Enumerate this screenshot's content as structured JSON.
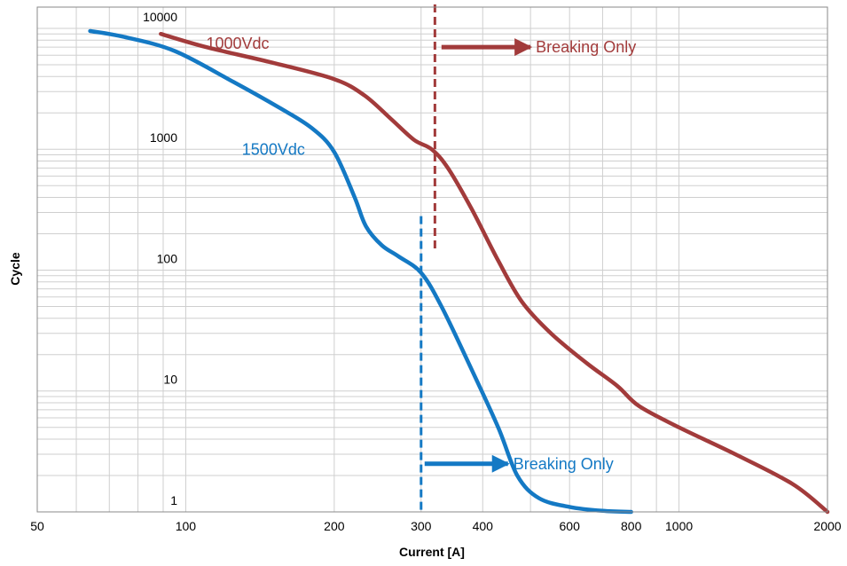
{
  "chart_data": {
    "type": "line",
    "title": "",
    "xlabel": "Current [A]",
    "ylabel": "Cycle",
    "x_scale": "log",
    "y_scale": "log",
    "xlim": [
      50,
      2000
    ],
    "ylim": [
      1,
      15000
    ],
    "grid": true,
    "x_ticks": [
      {
        "value": 50,
        "label": "50"
      },
      {
        "value": 100,
        "label": "100"
      },
      {
        "value": 200,
        "label": "200"
      },
      {
        "value": 300,
        "label": "300"
      },
      {
        "value": 400,
        "label": "400"
      },
      {
        "value": 600,
        "label": "600"
      },
      {
        "value": 800,
        "label": "800"
      },
      {
        "value": 1000,
        "label": "1000"
      },
      {
        "value": 2000,
        "label": "2000"
      }
    ],
    "y_ticks": [
      {
        "value": 1,
        "label": "1"
      },
      {
        "value": 10,
        "label": "10"
      },
      {
        "value": 100,
        "label": "100"
      },
      {
        "value": 1000,
        "label": "1000"
      },
      {
        "value": 10000,
        "label": "10000"
      }
    ],
    "series": [
      {
        "name": "1000Vdc",
        "color": "#a23b3b",
        "points": [
          [
            89,
            9000
          ],
          [
            110,
            7000
          ],
          [
            150,
            5200
          ],
          [
            200,
            3800
          ],
          [
            230,
            2800
          ],
          [
            260,
            1800
          ],
          [
            290,
            1200
          ],
          [
            315,
            1000
          ],
          [
            340,
            700
          ],
          [
            380,
            320
          ],
          [
            430,
            120
          ],
          [
            480,
            55
          ],
          [
            550,
            30
          ],
          [
            650,
            17
          ],
          [
            750,
            11
          ],
          [
            830,
            7.5
          ],
          [
            1000,
            5
          ],
          [
            1300,
            3
          ],
          [
            1700,
            1.7
          ],
          [
            2000,
            1
          ]
        ]
      },
      {
        "name": "1500Vdc",
        "color": "#1479c4",
        "points": [
          [
            64,
            9500
          ],
          [
            75,
            8500
          ],
          [
            95,
            6500
          ],
          [
            125,
            3600
          ],
          [
            155,
            2200
          ],
          [
            180,
            1500
          ],
          [
            200,
            950
          ],
          [
            220,
            400
          ],
          [
            232,
            230
          ],
          [
            250,
            160
          ],
          [
            270,
            130
          ],
          [
            300,
            95
          ],
          [
            330,
            50
          ],
          [
            380,
            15
          ],
          [
            430,
            5
          ],
          [
            470,
            2
          ],
          [
            520,
            1.3
          ],
          [
            600,
            1.1
          ],
          [
            700,
            1.02
          ],
          [
            800,
            1
          ]
        ]
      }
    ],
    "limits": [
      {
        "series": "1000Vdc",
        "x": 320,
        "y_range": [
          150,
          20000
        ],
        "label": "Breaking Only",
        "arrow_x": [
          330,
          500
        ],
        "arrow_y": 7000
      },
      {
        "series": "1500Vdc",
        "x": 300,
        "y_range": [
          1,
          280
        ],
        "label": "Breaking Only",
        "arrow_x": [
          305,
          450
        ],
        "arrow_y": 2.5
      }
    ]
  }
}
